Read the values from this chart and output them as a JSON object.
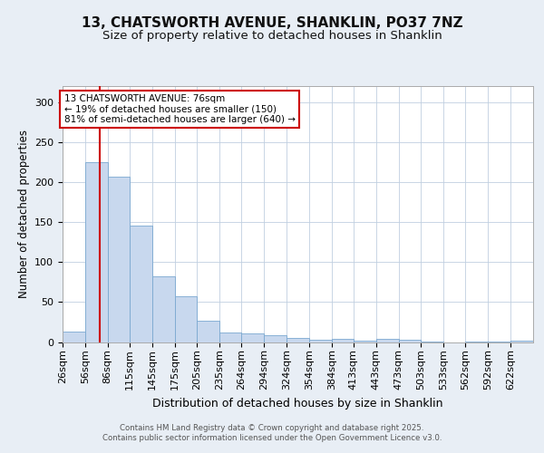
{
  "title": "13, CHATSWORTH AVENUE, SHANKLIN, PO37 7NZ",
  "subtitle": "Size of property relative to detached houses in Shanklin",
  "xlabel": "Distribution of detached houses by size in Shanklin",
  "ylabel": "Number of detached properties",
  "bin_labels": [
    "26sqm",
    "56sqm",
    "86sqm",
    "115sqm",
    "145sqm",
    "175sqm",
    "205sqm",
    "235sqm",
    "264sqm",
    "294sqm",
    "324sqm",
    "354sqm",
    "384sqm",
    "413sqm",
    "443sqm",
    "473sqm",
    "503sqm",
    "533sqm",
    "562sqm",
    "592sqm",
    "622sqm"
  ],
  "bin_edges": [
    26,
    56,
    86,
    115,
    145,
    175,
    205,
    235,
    264,
    294,
    324,
    354,
    384,
    413,
    443,
    473,
    503,
    533,
    562,
    592,
    622
  ],
  "counts": [
    13,
    225,
    207,
    145,
    82,
    57,
    27,
    12,
    11,
    8,
    5,
    3,
    4,
    2,
    4,
    3,
    1,
    0,
    1,
    1,
    2
  ],
  "bar_color": "#c8d8ee",
  "bar_edgecolor": "#7aa8d0",
  "property_size": 76,
  "vline_color": "#cc0000",
  "annotation_title": "13 CHATSWORTH AVENUE: 76sqm",
  "annotation_line2": "← 19% of detached houses are smaller (150)",
  "annotation_line3": "81% of semi-detached houses are larger (640) →",
  "annotation_box_edgecolor": "#cc0000",
  "ylim": [
    0,
    320
  ],
  "yticks": [
    0,
    50,
    100,
    150,
    200,
    250,
    300
  ],
  "footer_line1": "Contains HM Land Registry data © Crown copyright and database right 2025.",
  "footer_line2": "Contains public sector information licensed under the Open Government Licence v3.0.",
  "bg_color": "#e8eef5",
  "plot_bg_color": "#ffffff",
  "grid_color": "#c0cfe0",
  "title_fontsize": 11,
  "subtitle_fontsize": 9.5
}
